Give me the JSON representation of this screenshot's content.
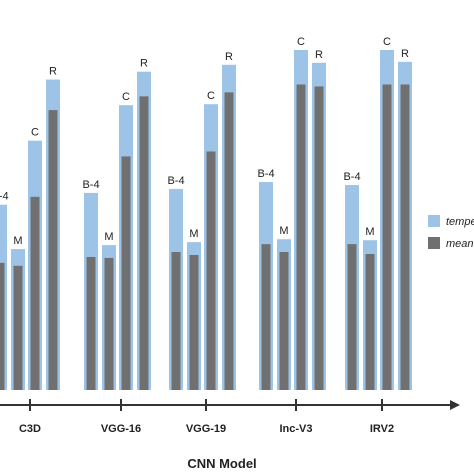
{
  "chart_data": {
    "type": "bar",
    "xlabel": "CNN Model",
    "ylabel": "",
    "categories": [
      "C3D",
      "VGG-16",
      "VGG-19",
      "Inc-V3",
      "IRV2"
    ],
    "metrics": [
      "B-4",
      "M",
      "C",
      "R"
    ],
    "series": [
      {
        "name": "tempe",
        "color": "#9DC3E6",
        "values": [
          [
            188,
            143,
            253,
            315
          ],
          [
            200,
            147,
            289,
            323
          ],
          [
            204,
            150,
            290,
            330
          ],
          [
            211,
            153,
            345,
            332
          ],
          [
            208,
            152,
            345,
            333
          ]
        ]
      },
      {
        "name": "mean",
        "color": "#707070",
        "values": [
          [
            129,
            126,
            196,
            284
          ],
          [
            135,
            134,
            237,
            298
          ],
          [
            140,
            137,
            242,
            302
          ],
          [
            148,
            140,
            310,
            308
          ],
          [
            148,
            138,
            310,
            310
          ]
        ]
      }
    ],
    "ylim": [
      0,
      345
    ],
    "legend": "right"
  }
}
